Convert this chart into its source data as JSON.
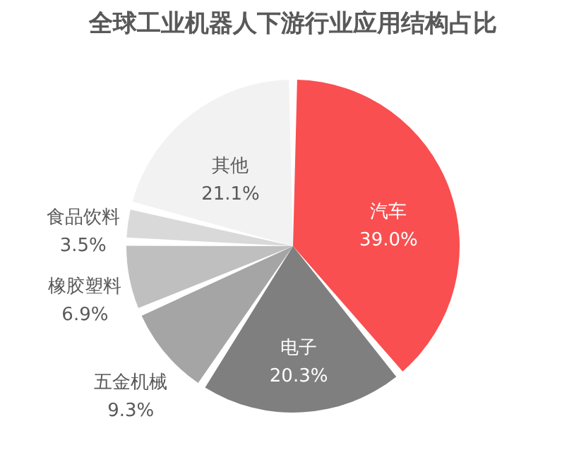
{
  "chart_data": {
    "type": "pie",
    "title": "全球工业机器人下游行业应用结构占比",
    "categories": [
      "汽车",
      "电子",
      "五金机械",
      "橡胶塑料",
      "食品饮料",
      "其他"
    ],
    "values": [
      39.0,
      20.3,
      9.3,
      6.9,
      3.5,
      21.1
    ],
    "value_labels": [
      "39.0%",
      "20.3%",
      "9.3%",
      "6.9%",
      "3.5%",
      "21.1%"
    ],
    "colors": [
      "#f94f50",
      "#7f7f7f",
      "#a5a5a5",
      "#bfbfbf",
      "#d9d9d9",
      "#f2f2f2"
    ]
  }
}
